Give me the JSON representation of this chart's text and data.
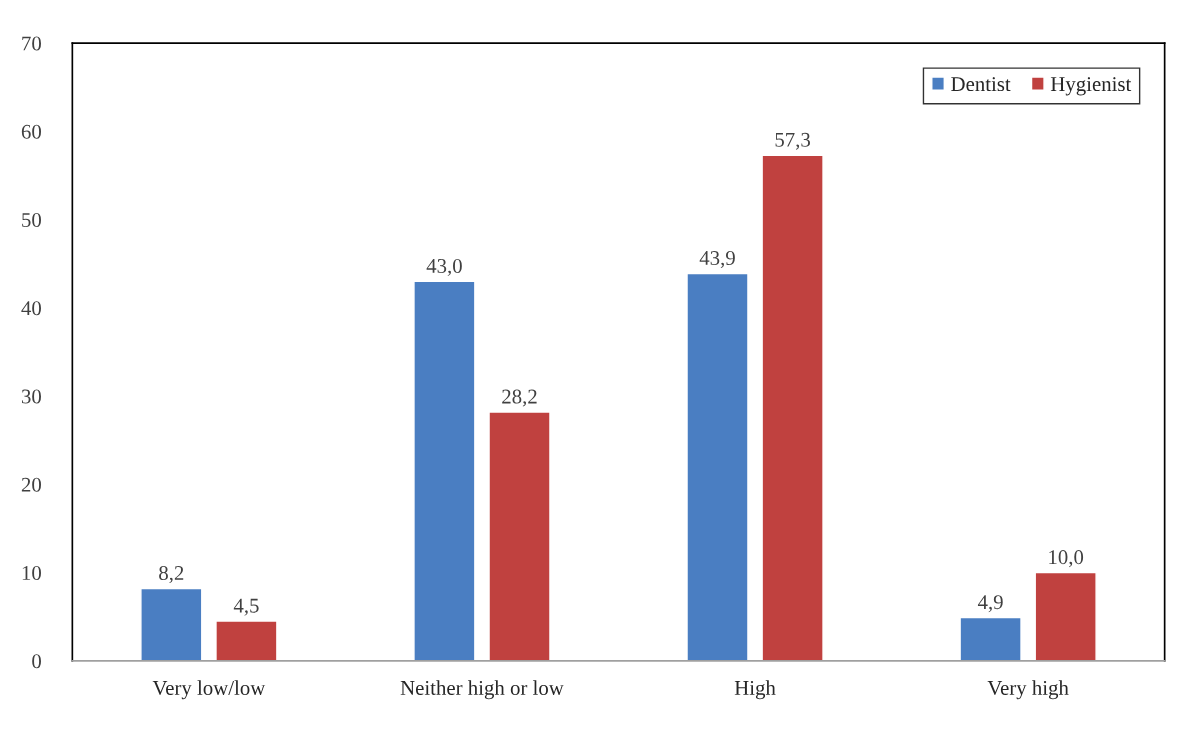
{
  "chart_data": {
    "type": "bar",
    "categories": [
      "Very low/low",
      "Neither high or low",
      "High",
      "Very high"
    ],
    "series": [
      {
        "name": "Dentist",
        "color": "#4a7ec2",
        "values": [
          8.2,
          43.0,
          43.9,
          4.9
        ],
        "value_labels": [
          "8,2",
          "43,0",
          "43,9",
          "4,9"
        ]
      },
      {
        "name": "Hygienist",
        "color": "#c0413f",
        "values": [
          4.5,
          28.2,
          57.3,
          10.0
        ],
        "value_labels": [
          "4,5",
          "28,2",
          "57,3",
          "10,0"
        ]
      }
    ],
    "ylim": [
      0,
      70
    ],
    "yticks": [
      0,
      10,
      20,
      30,
      40,
      50,
      60,
      70
    ],
    "grid": false,
    "legend": "top right"
  }
}
